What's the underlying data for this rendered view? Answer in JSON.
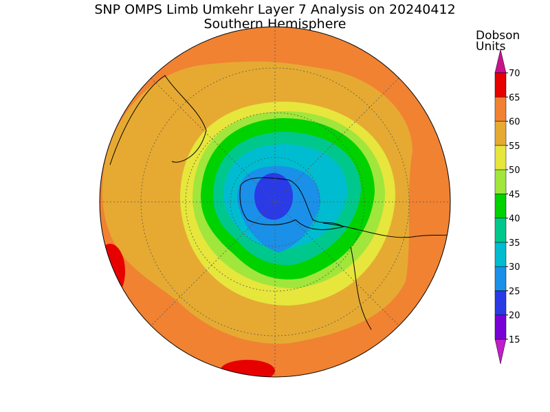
{
  "header": {
    "title": "SNP OMPS Limb Umkehr Layer 7 Analysis on 20240412",
    "subtitle": "Southern Hemisphere"
  },
  "colorbar": {
    "label": [
      "Dobson",
      "Units"
    ],
    "ticks": [
      15,
      20,
      25,
      30,
      35,
      40,
      45,
      50,
      55,
      60,
      65,
      70
    ],
    "colors": [
      "#7a00d8",
      "#2a3ae6",
      "#1a90e8",
      "#00bcd0",
      "#00c88c",
      "#00d200",
      "#a0e63c",
      "#e6e63c",
      "#e6aa32",
      "#f08232",
      "#e60000"
    ],
    "under_color": "#c01ec8",
    "over_color": "#c8148c"
  }
}
